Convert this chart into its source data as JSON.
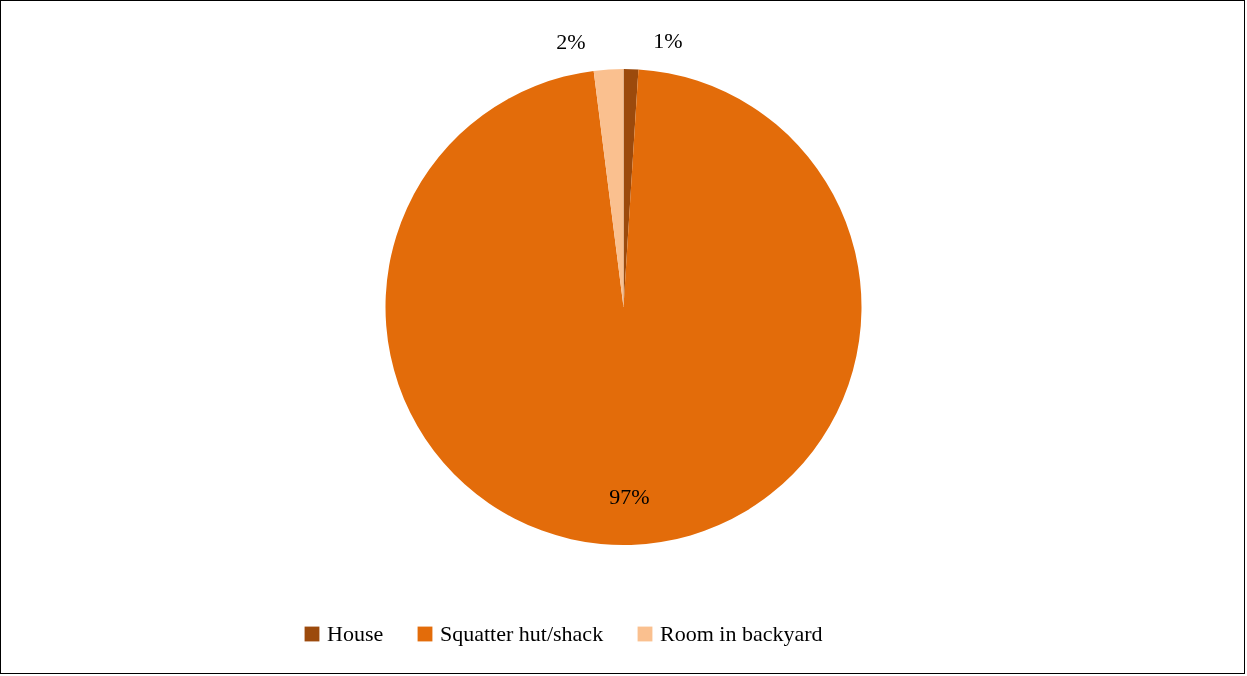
{
  "chart_data": {
    "type": "pie",
    "categories": [
      "House",
      "Squatter hut/shack",
      "Room in backyard"
    ],
    "values": [
      1,
      97,
      2
    ],
    "colors": [
      "#9c4a0c",
      "#e36c0a",
      "#fac08f"
    ],
    "value_labels": [
      "1%",
      "97%",
      "2%"
    ],
    "legend": "bottom"
  }
}
